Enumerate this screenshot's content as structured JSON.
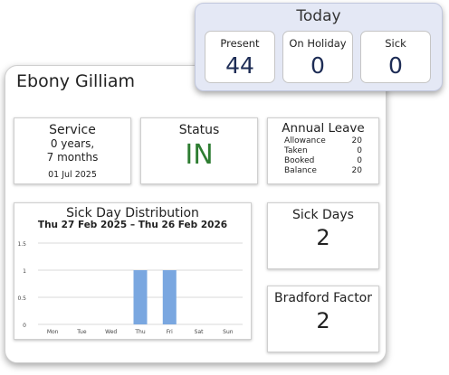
{
  "employee": {
    "name": "Ebony Gilliam"
  },
  "service": {
    "title": "Service",
    "years_line": "0 years,",
    "months_line": "7 months",
    "start_date": "01 Jul 2025"
  },
  "status": {
    "title": "Status",
    "value": "IN",
    "color": "#2e7d32"
  },
  "annual_leave": {
    "title": "Annual Leave",
    "rows": [
      {
        "label": "Allowance",
        "value": "20"
      },
      {
        "label": "Taken",
        "value": "0"
      },
      {
        "label": "Booked",
        "value": "0"
      },
      {
        "label": "Balance",
        "value": "20"
      }
    ]
  },
  "sick_days": {
    "title": "Sick Days",
    "value": "2"
  },
  "bradford": {
    "title": "Bradford Factor",
    "value": "2"
  },
  "today": {
    "title": "Today",
    "present_label": "Present",
    "present_value": "44",
    "on_holiday_label": "On Holiday",
    "on_holiday_value": "0",
    "sick_label": "Sick",
    "sick_value": "0"
  },
  "chart_data": {
    "type": "bar",
    "title": "Sick Day Distribution",
    "subtitle": "Thu 27 Feb 2025 – Thu 26 Feb 2026",
    "categories": [
      "Mon",
      "Tue",
      "Wed",
      "Thu",
      "Fri",
      "Sat",
      "Sun"
    ],
    "values": [
      0,
      0,
      0,
      1,
      1,
      0,
      0
    ],
    "ylim": [
      0,
      1.5
    ],
    "yticks": [
      "0",
      "0.5",
      "1",
      "1.5"
    ],
    "bar_color": "#7aa7e0",
    "grid": true
  }
}
